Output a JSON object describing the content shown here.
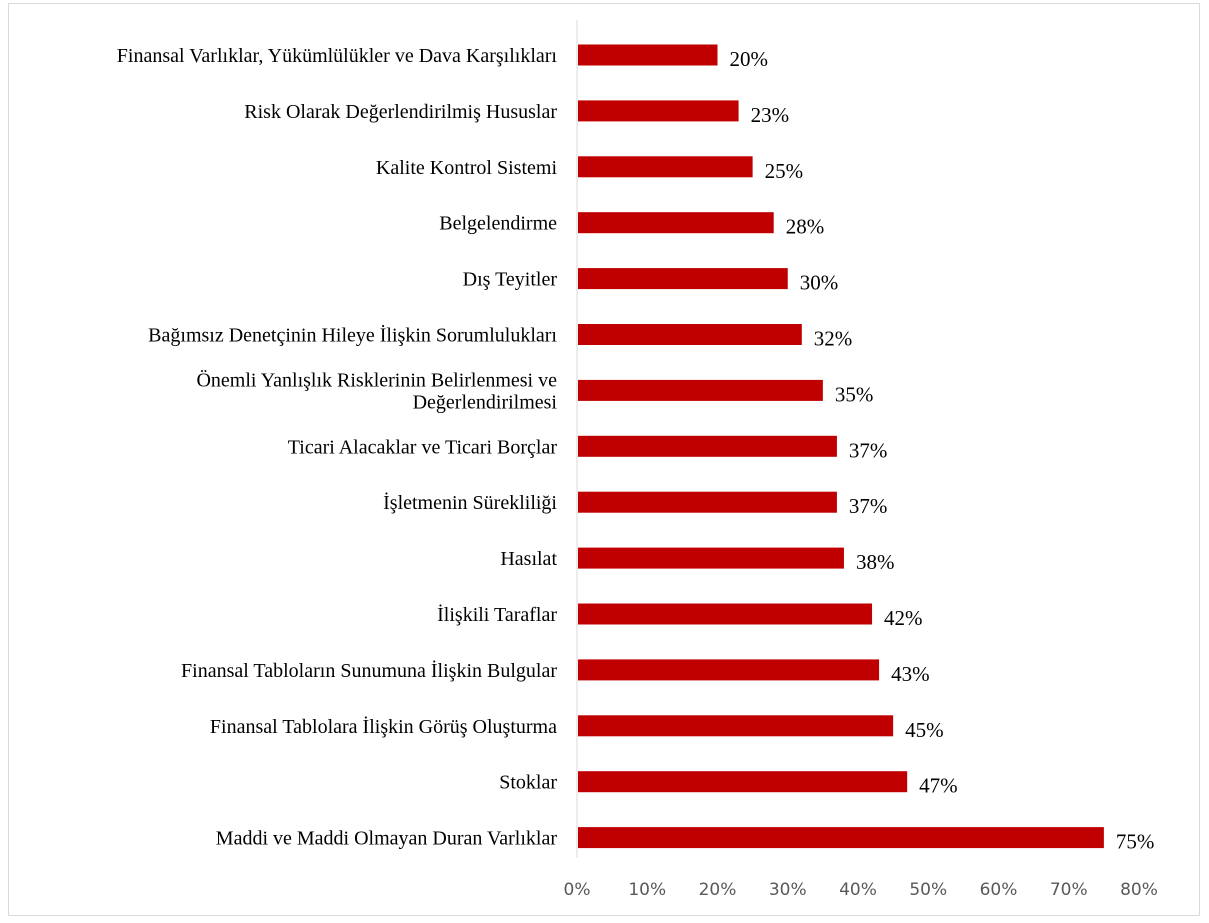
{
  "chart_data": {
    "type": "bar",
    "orientation": "horizontal",
    "categories": [
      [
        "Finansal Varlıklar, Yükümlülükler ve Dava Karşılıkları"
      ],
      [
        "Risk Olarak Değerlendirilmiş Hususlar"
      ],
      [
        "Kalite Kontrol Sistemi"
      ],
      [
        "Belgelendirme"
      ],
      [
        "Dış Teyitler"
      ],
      [
        "Bağımsız Denetçinin Hileye İlişkin Sorumlulukları"
      ],
      [
        "Önemli Yanlışlık Risklerinin Belirlenmesi ve",
        "Değerlendirilmesi"
      ],
      [
        "Ticari Alacaklar ve Ticari Borçlar"
      ],
      [
        "İşletmenin Sürekliliği"
      ],
      [
        "Hasılat"
      ],
      [
        "İlişkili Taraflar"
      ],
      [
        "Finansal Tabloların Sunumuna İlişkin Bulgular"
      ],
      [
        "Finansal Tablolara İlişkin Görüş Oluşturma"
      ],
      [
        "Stoklar"
      ],
      [
        "Maddi ve Maddi Olmayan Duran Varlıklar"
      ]
    ],
    "values": [
      20,
      23,
      25,
      28,
      30,
      32,
      35,
      37,
      37,
      38,
      42,
      43,
      45,
      47,
      75
    ],
    "data_labels": [
      "20%",
      "23%",
      "25%",
      "28%",
      "30%",
      "32%",
      "35%",
      "37%",
      "37%",
      "38%",
      "42%",
      "43%",
      "45%",
      "47%",
      "75%"
    ],
    "xlim": [
      0,
      80
    ],
    "xticks": [
      "0%",
      "10%",
      "20%",
      "30%",
      "40%",
      "50%",
      "60%",
      "70%",
      "80%"
    ],
    "title": "",
    "xlabel": "",
    "ylabel": "",
    "grid": false,
    "legend": "none",
    "bar_color": "#c00000",
    "axis_color": "#d9d9d9",
    "tick_color": "#595959"
  }
}
